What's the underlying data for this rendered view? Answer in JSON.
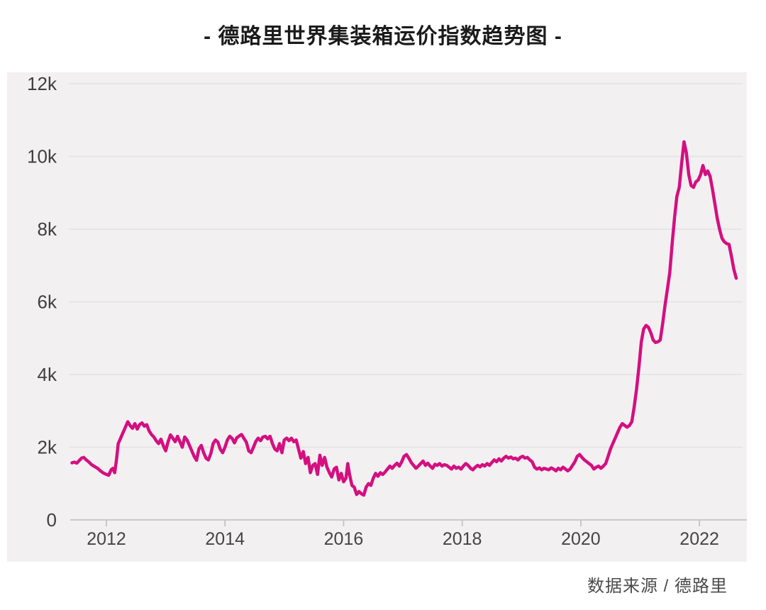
{
  "page": {
    "title": "- 德路里世界集装箱运价指数趋势图 -",
    "source_note": "数据来源 /  德路里"
  },
  "colors": {
    "line": "#d40f80",
    "panel_bg": "#f2f0f1",
    "grid": "#e3e1e1",
    "axis": "#c4c2c2",
    "tick_text": "#3f3f3f",
    "title_text": "#1b1b1b",
    "source_text": "#4b4b4b"
  },
  "chart_data": {
    "type": "line",
    "title": "德路里世界集装箱运价指数趋势图",
    "series_name": "德路里世界集装箱运价指数",
    "color": "#d40f80",
    "grid": true,
    "legend": "none",
    "x_axis": {
      "label": "",
      "range": [
        2011.39,
        2022.8
      ],
      "ticks": [
        2012,
        2014,
        2016,
        2018,
        2020,
        2022
      ]
    },
    "y_axis": {
      "label": "",
      "range": [
        0,
        12000
      ],
      "ticks": [
        {
          "value": 0,
          "label": "0"
        },
        {
          "value": 2000,
          "label": "2k"
        },
        {
          "value": 4000,
          "label": "4k"
        },
        {
          "value": 6000,
          "label": "6k"
        },
        {
          "value": 8000,
          "label": "8k"
        },
        {
          "value": 10000,
          "label": "10k"
        },
        {
          "value": 12000,
          "label": "12k"
        }
      ]
    },
    "points": [
      [
        2011.42,
        1570
      ],
      [
        2011.46,
        1590
      ],
      [
        2011.5,
        1560
      ],
      [
        2011.54,
        1630
      ],
      [
        2011.58,
        1700
      ],
      [
        2011.62,
        1720
      ],
      [
        2011.66,
        1650
      ],
      [
        2011.7,
        1600
      ],
      [
        2011.75,
        1520
      ],
      [
        2011.8,
        1470
      ],
      [
        2011.85,
        1420
      ],
      [
        2011.9,
        1350
      ],
      [
        2011.95,
        1290
      ],
      [
        2012.0,
        1250
      ],
      [
        2012.04,
        1230
      ],
      [
        2012.08,
        1380
      ],
      [
        2012.11,
        1420
      ],
      [
        2012.14,
        1300
      ],
      [
        2012.17,
        1650
      ],
      [
        2012.2,
        2100
      ],
      [
        2012.24,
        2250
      ],
      [
        2012.28,
        2400
      ],
      [
        2012.32,
        2550
      ],
      [
        2012.36,
        2700
      ],
      [
        2012.4,
        2600
      ],
      [
        2012.44,
        2520
      ],
      [
        2012.48,
        2650
      ],
      [
        2012.52,
        2500
      ],
      [
        2012.56,
        2620
      ],
      [
        2012.6,
        2670
      ],
      [
        2012.64,
        2580
      ],
      [
        2012.68,
        2620
      ],
      [
        2012.72,
        2450
      ],
      [
        2012.76,
        2350
      ],
      [
        2012.8,
        2280
      ],
      [
        2012.84,
        2180
      ],
      [
        2012.88,
        2100
      ],
      [
        2012.92,
        2220
      ],
      [
        2012.96,
        2040
      ],
      [
        2013.0,
        1900
      ],
      [
        2013.04,
        2150
      ],
      [
        2013.08,
        2340
      ],
      [
        2013.12,
        2250
      ],
      [
        2013.16,
        2150
      ],
      [
        2013.2,
        2300
      ],
      [
        2013.24,
        2150
      ],
      [
        2013.28,
        2000
      ],
      [
        2013.32,
        2280
      ],
      [
        2013.36,
        2200
      ],
      [
        2013.4,
        2050
      ],
      [
        2013.44,
        1900
      ],
      [
        2013.48,
        1750
      ],
      [
        2013.52,
        1640
      ],
      [
        2013.56,
        1950
      ],
      [
        2013.6,
        2050
      ],
      [
        2013.64,
        1850
      ],
      [
        2013.68,
        1700
      ],
      [
        2013.72,
        1650
      ],
      [
        2013.76,
        1820
      ],
      [
        2013.8,
        2100
      ],
      [
        2013.84,
        2200
      ],
      [
        2013.88,
        2140
      ],
      [
        2013.92,
        1950
      ],
      [
        2013.96,
        1850
      ],
      [
        2014.0,
        2000
      ],
      [
        2014.04,
        2200
      ],
      [
        2014.08,
        2300
      ],
      [
        2014.12,
        2240
      ],
      [
        2014.16,
        2120
      ],
      [
        2014.2,
        2260
      ],
      [
        2014.24,
        2310
      ],
      [
        2014.28,
        2350
      ],
      [
        2014.32,
        2240
      ],
      [
        2014.36,
        2140
      ],
      [
        2014.4,
        1900
      ],
      [
        2014.44,
        1850
      ],
      [
        2014.48,
        2000
      ],
      [
        2014.52,
        2160
      ],
      [
        2014.56,
        2250
      ],
      [
        2014.6,
        2180
      ],
      [
        2014.64,
        2280
      ],
      [
        2014.68,
        2300
      ],
      [
        2014.72,
        2230
      ],
      [
        2014.76,
        2300
      ],
      [
        2014.8,
        2100
      ],
      [
        2014.84,
        1950
      ],
      [
        2014.88,
        1900
      ],
      [
        2014.92,
        2100
      ],
      [
        2014.96,
        1850
      ],
      [
        2015.0,
        2200
      ],
      [
        2015.04,
        2250
      ],
      [
        2015.08,
        2180
      ],
      [
        2015.12,
        2250
      ],
      [
        2015.16,
        2150
      ],
      [
        2015.2,
        2200
      ],
      [
        2015.24,
        1950
      ],
      [
        2015.28,
        1700
      ],
      [
        2015.32,
        1880
      ],
      [
        2015.36,
        1550
      ],
      [
        2015.4,
        1720
      ],
      [
        2015.44,
        1300
      ],
      [
        2015.48,
        1500
      ],
      [
        2015.52,
        1550
      ],
      [
        2015.56,
        1250
      ],
      [
        2015.6,
        1780
      ],
      [
        2015.64,
        1500
      ],
      [
        2015.68,
        1720
      ],
      [
        2015.72,
        1450
      ],
      [
        2015.76,
        1300
      ],
      [
        2015.8,
        1180
      ],
      [
        2015.84,
        1400
      ],
      [
        2015.88,
        1450
      ],
      [
        2015.92,
        1100
      ],
      [
        2015.96,
        1280
      ],
      [
        2016.0,
        1050
      ],
      [
        2016.04,
        1150
      ],
      [
        2016.07,
        1550
      ],
      [
        2016.1,
        1250
      ],
      [
        2016.14,
        950
      ],
      [
        2016.18,
        900
      ],
      [
        2016.22,
        700
      ],
      [
        2016.26,
        780
      ],
      [
        2016.3,
        720
      ],
      [
        2016.34,
        680
      ],
      [
        2016.38,
        900
      ],
      [
        2016.42,
        1000
      ],
      [
        2016.46,
        950
      ],
      [
        2016.5,
        1150
      ],
      [
        2016.54,
        1280
      ],
      [
        2016.58,
        1200
      ],
      [
        2016.62,
        1300
      ],
      [
        2016.66,
        1250
      ],
      [
        2016.7,
        1320
      ],
      [
        2016.74,
        1400
      ],
      [
        2016.78,
        1480
      ],
      [
        2016.82,
        1420
      ],
      [
        2016.86,
        1500
      ],
      [
        2016.9,
        1560
      ],
      [
        2016.94,
        1480
      ],
      [
        2016.98,
        1600
      ],
      [
        2017.02,
        1750
      ],
      [
        2017.06,
        1800
      ],
      [
        2017.1,
        1700
      ],
      [
        2017.14,
        1580
      ],
      [
        2017.18,
        1500
      ],
      [
        2017.22,
        1420
      ],
      [
        2017.26,
        1480
      ],
      [
        2017.3,
        1550
      ],
      [
        2017.34,
        1620
      ],
      [
        2017.38,
        1500
      ],
      [
        2017.42,
        1560
      ],
      [
        2017.46,
        1480
      ],
      [
        2017.5,
        1420
      ],
      [
        2017.54,
        1530
      ],
      [
        2017.58,
        1500
      ],
      [
        2017.62,
        1550
      ],
      [
        2017.66,
        1480
      ],
      [
        2017.7,
        1520
      ],
      [
        2017.74,
        1500
      ],
      [
        2017.78,
        1450
      ],
      [
        2017.82,
        1400
      ],
      [
        2017.86,
        1480
      ],
      [
        2017.9,
        1420
      ],
      [
        2017.94,
        1450
      ],
      [
        2017.98,
        1400
      ],
      [
        2018.02,
        1480
      ],
      [
        2018.06,
        1550
      ],
      [
        2018.1,
        1500
      ],
      [
        2018.14,
        1420
      ],
      [
        2018.18,
        1380
      ],
      [
        2018.22,
        1450
      ],
      [
        2018.26,
        1500
      ],
      [
        2018.3,
        1460
      ],
      [
        2018.34,
        1520
      ],
      [
        2018.38,
        1480
      ],
      [
        2018.42,
        1550
      ],
      [
        2018.46,
        1500
      ],
      [
        2018.5,
        1580
      ],
      [
        2018.54,
        1650
      ],
      [
        2018.58,
        1600
      ],
      [
        2018.62,
        1680
      ],
      [
        2018.66,
        1620
      ],
      [
        2018.7,
        1700
      ],
      [
        2018.74,
        1750
      ],
      [
        2018.78,
        1700
      ],
      [
        2018.82,
        1730
      ],
      [
        2018.86,
        1680
      ],
      [
        2018.9,
        1700
      ],
      [
        2018.94,
        1650
      ],
      [
        2018.98,
        1720
      ],
      [
        2019.02,
        1750
      ],
      [
        2019.06,
        1700
      ],
      [
        2019.1,
        1720
      ],
      [
        2019.14,
        1650
      ],
      [
        2019.18,
        1600
      ],
      [
        2019.22,
        1450
      ],
      [
        2019.26,
        1400
      ],
      [
        2019.3,
        1430
      ],
      [
        2019.34,
        1380
      ],
      [
        2019.38,
        1420
      ],
      [
        2019.42,
        1400
      ],
      [
        2019.46,
        1380
      ],
      [
        2019.5,
        1430
      ],
      [
        2019.54,
        1400
      ],
      [
        2019.58,
        1350
      ],
      [
        2019.62,
        1420
      ],
      [
        2019.66,
        1380
      ],
      [
        2019.7,
        1450
      ],
      [
        2019.74,
        1400
      ],
      [
        2019.78,
        1350
      ],
      [
        2019.82,
        1400
      ],
      [
        2019.86,
        1500
      ],
      [
        2019.9,
        1600
      ],
      [
        2019.94,
        1750
      ],
      [
        2019.98,
        1800
      ],
      [
        2020.02,
        1720
      ],
      [
        2020.06,
        1650
      ],
      [
        2020.1,
        1600
      ],
      [
        2020.14,
        1550
      ],
      [
        2020.18,
        1500
      ],
      [
        2020.22,
        1400
      ],
      [
        2020.26,
        1450
      ],
      [
        2020.3,
        1480
      ],
      [
        2020.34,
        1420
      ],
      [
        2020.38,
        1480
      ],
      [
        2020.42,
        1550
      ],
      [
        2020.46,
        1750
      ],
      [
        2020.5,
        1950
      ],
      [
        2020.54,
        2100
      ],
      [
        2020.58,
        2250
      ],
      [
        2020.62,
        2400
      ],
      [
        2020.66,
        2550
      ],
      [
        2020.7,
        2650
      ],
      [
        2020.74,
        2600
      ],
      [
        2020.78,
        2550
      ],
      [
        2020.82,
        2600
      ],
      [
        2020.86,
        2700
      ],
      [
        2020.9,
        3100
      ],
      [
        2020.94,
        3600
      ],
      [
        2020.98,
        4200
      ],
      [
        2021.02,
        4900
      ],
      [
        2021.06,
        5250
      ],
      [
        2021.1,
        5350
      ],
      [
        2021.14,
        5300
      ],
      [
        2021.18,
        5150
      ],
      [
        2021.22,
        4950
      ],
      [
        2021.26,
        4880
      ],
      [
        2021.3,
        4900
      ],
      [
        2021.34,
        4950
      ],
      [
        2021.38,
        5400
      ],
      [
        2021.42,
        5900
      ],
      [
        2021.46,
        6350
      ],
      [
        2021.5,
        6800
      ],
      [
        2021.54,
        7600
      ],
      [
        2021.58,
        8300
      ],
      [
        2021.62,
        8900
      ],
      [
        2021.66,
        9150
      ],
      [
        2021.7,
        9800
      ],
      [
        2021.74,
        10400
      ],
      [
        2021.78,
        10100
      ],
      [
        2021.82,
        9500
      ],
      [
        2021.86,
        9200
      ],
      [
        2021.9,
        9150
      ],
      [
        2021.94,
        9300
      ],
      [
        2021.98,
        9350
      ],
      [
        2022.02,
        9500
      ],
      [
        2022.06,
        9750
      ],
      [
        2022.1,
        9500
      ],
      [
        2022.14,
        9600
      ],
      [
        2022.18,
        9450
      ],
      [
        2022.22,
        9100
      ],
      [
        2022.26,
        8700
      ],
      [
        2022.3,
        8300
      ],
      [
        2022.34,
        8000
      ],
      [
        2022.38,
        7750
      ],
      [
        2022.42,
        7650
      ],
      [
        2022.46,
        7600
      ],
      [
        2022.5,
        7580
      ],
      [
        2022.54,
        7250
      ],
      [
        2022.58,
        6900
      ],
      [
        2022.62,
        6650
      ]
    ]
  }
}
